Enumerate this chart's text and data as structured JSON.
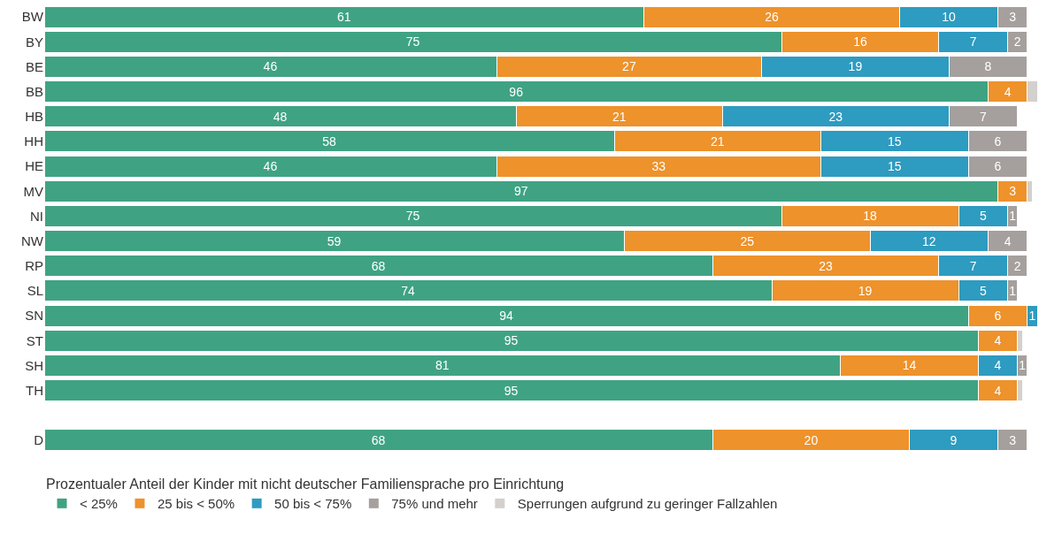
{
  "chart_data": {
    "type": "bar",
    "orientation": "horizontal",
    "stacked": true,
    "legend_title": "Prozentualer Anteil der Kinder mit nicht deutscher Familiensprache pro Einrichtung",
    "legend": "bottom",
    "tick_labels": "y",
    "xlim": [
      0,
      101
    ],
    "categories": [
      "BW",
      "BY",
      "BE",
      "BB",
      "HB",
      "HH",
      "HE",
      "MV",
      "NI",
      "NW",
      "RP",
      "SL",
      "SN",
      "ST",
      "SH",
      "TH",
      null,
      "D"
    ],
    "series": [
      {
        "name": "< 25%",
        "color": "#3fa383",
        "values": [
          61,
          75,
          46,
          96,
          48,
          58,
          46,
          97,
          75,
          59,
          68,
          74,
          94,
          95,
          81,
          95,
          null,
          68
        ],
        "value_labels": [
          "61",
          "75",
          "46",
          "96",
          "48",
          "58",
          "46",
          "97",
          "75",
          "59",
          "68",
          "74",
          "94",
          "95",
          "81",
          "95",
          null,
          "68"
        ]
      },
      {
        "name": "25 bis < 50%",
        "color": "#ee922b",
        "values": [
          26,
          16,
          27,
          4,
          21,
          21,
          33,
          3,
          18,
          25,
          23,
          19,
          6,
          4,
          14,
          4,
          null,
          20
        ],
        "value_labels": [
          "26",
          "16",
          "27",
          "4",
          "21",
          "21",
          "33",
          "3",
          "18",
          "25",
          "23",
          "19",
          "6",
          "4",
          "14",
          "4",
          null,
          "20"
        ]
      },
      {
        "name": "50 bis < 75%",
        "color": "#2e9bc0",
        "values": [
          10,
          7,
          19,
          null,
          23,
          15,
          15,
          null,
          5,
          12,
          7,
          5,
          1,
          null,
          4,
          null,
          null,
          9
        ],
        "value_labels": [
          "10",
          "7",
          "19",
          null,
          "23",
          "15",
          "15",
          null,
          "5",
          "12",
          "7",
          "5",
          "1",
          null,
          "4",
          null,
          null,
          "9"
        ]
      },
      {
        "name": "75% und mehr",
        "color": "#a5a09d",
        "values": [
          3,
          2,
          8,
          null,
          7,
          6,
          6,
          null,
          1,
          4,
          2,
          1,
          0.3,
          null,
          1,
          null,
          null,
          3
        ],
        "value_labels": [
          "3",
          "2",
          "8",
          null,
          "7",
          "6",
          "6",
          null,
          "1",
          "4",
          "2",
          "1",
          null,
          null,
          "1",
          null,
          null,
          "3"
        ]
      },
      {
        "name": "Sperrungen aufgrund zu geringer Fallzahlen",
        "color": "#d3d0cd",
        "values": [
          null,
          null,
          null,
          1,
          null,
          null,
          null,
          0.5,
          null,
          null,
          null,
          null,
          null,
          0.5,
          null,
          0.5,
          null,
          null
        ],
        "value_labels": [
          null,
          null,
          null,
          null,
          null,
          null,
          null,
          null,
          null,
          null,
          null,
          null,
          null,
          null,
          null,
          null,
          null,
          null
        ]
      }
    ]
  }
}
